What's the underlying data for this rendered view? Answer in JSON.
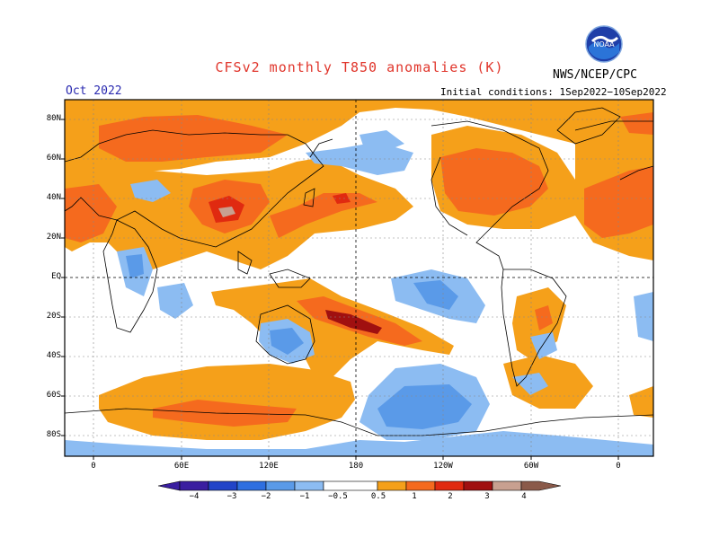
{
  "header": {
    "title": "CFSv2 monthly T850 anomalies (K)",
    "agency": "NWS/NCEP/CPC",
    "target_month": "Oct 2022",
    "initial_conditions": "Initial conditions: 1Sep2022−10Sep2022",
    "logo_text": "NOAA"
  },
  "map": {
    "lat_labels": [
      "80N",
      "60N",
      "40N",
      "20N",
      "EQ",
      "20S",
      "40S",
      "60S",
      "80S"
    ],
    "lon_labels": [
      "0",
      "60E",
      "120E",
      "180",
      "120W",
      "60W",
      "0"
    ]
  },
  "colorbar": {
    "labels": [
      "−4",
      "−3",
      "−2",
      "−1",
      "−0.5",
      "0.5",
      "1",
      "2",
      "3",
      "4"
    ],
    "colors": {
      "neg4": "#3a1ea0",
      "neg3": "#2244c8",
      "neg2": "#2f6fe0",
      "neg1": "#5a9ae8",
      "neg05": "#8cbcf2",
      "pos05": "#f5a01a",
      "pos1": "#f56a1e",
      "pos2": "#e02a10",
      "pos3": "#a01010",
      "pos4": "#c8a090",
      "pos5": "#8a5a4a"
    }
  }
}
